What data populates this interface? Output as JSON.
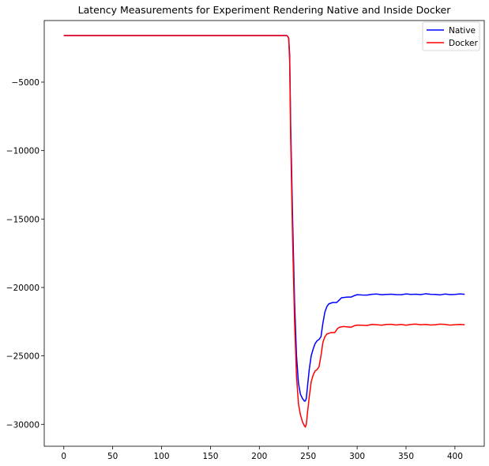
{
  "chart_data": {
    "type": "line",
    "title": "Latency Measurements for Experiment Rendering Native and Inside Docker",
    "xlabel": "",
    "ylabel": "",
    "xlim": [
      -20,
      430
    ],
    "ylim": [
      -31600,
      -500
    ],
    "xticks": [
      0,
      50,
      100,
      150,
      200,
      250,
      300,
      350,
      400
    ],
    "yticks": [
      -5000,
      -10000,
      -15000,
      -20000,
      -25000,
      -30000
    ],
    "xtick_labels": [
      "0",
      "50",
      "100",
      "150",
      "200",
      "250",
      "300",
      "350",
      "400"
    ],
    "ytick_labels": [
      "−5000",
      "−10000",
      "−15000",
      "−20000",
      "−25000",
      "−30000"
    ],
    "grid": false,
    "legend_position": "top-right",
    "series": [
      {
        "name": "Native",
        "color": "#0000ff",
        "points": [
          [
            0,
            -1600
          ],
          [
            100,
            -1600
          ],
          [
            200,
            -1600
          ],
          [
            228,
            -1600
          ],
          [
            229,
            -1650
          ],
          [
            230,
            -1800
          ],
          [
            231,
            -3000
          ],
          [
            232,
            -8000
          ],
          [
            234,
            -15000
          ],
          [
            236,
            -21000
          ],
          [
            238,
            -25000
          ],
          [
            240,
            -27000
          ],
          [
            242,
            -27800
          ],
          [
            244,
            -28100
          ],
          [
            246,
            -28300
          ],
          [
            247,
            -28300
          ],
          [
            248,
            -28100
          ],
          [
            249,
            -27400
          ],
          [
            251,
            -26000
          ],
          [
            253,
            -25000
          ],
          [
            255,
            -24500
          ],
          [
            257,
            -24100
          ],
          [
            259,
            -23900
          ],
          [
            261,
            -23800
          ],
          [
            263,
            -23600
          ],
          [
            265,
            -22600
          ],
          [
            267,
            -21800
          ],
          [
            269,
            -21400
          ],
          [
            271,
            -21200
          ],
          [
            275,
            -21100
          ],
          [
            279,
            -21100
          ],
          [
            282,
            -20900
          ],
          [
            284,
            -20750
          ],
          [
            290,
            -20700
          ],
          [
            294,
            -20700
          ],
          [
            297,
            -20600
          ],
          [
            300,
            -20530
          ],
          [
            305,
            -20550
          ],
          [
            310,
            -20560
          ],
          [
            315,
            -20500
          ],
          [
            320,
            -20480
          ],
          [
            325,
            -20530
          ],
          [
            330,
            -20510
          ],
          [
            335,
            -20490
          ],
          [
            340,
            -20520
          ],
          [
            345,
            -20530
          ],
          [
            350,
            -20470
          ],
          [
            355,
            -20510
          ],
          [
            360,
            -20490
          ],
          [
            365,
            -20520
          ],
          [
            370,
            -20460
          ],
          [
            375,
            -20500
          ],
          [
            380,
            -20510
          ],
          [
            385,
            -20540
          ],
          [
            390,
            -20480
          ],
          [
            395,
            -20520
          ],
          [
            400,
            -20510
          ],
          [
            405,
            -20470
          ],
          [
            410,
            -20500
          ]
        ]
      },
      {
        "name": "Docker",
        "color": "#ff0000",
        "points": [
          [
            0,
            -1600
          ],
          [
            100,
            -1600
          ],
          [
            200,
            -1600
          ],
          [
            228,
            -1600
          ],
          [
            229,
            -1650
          ],
          [
            230,
            -1800
          ],
          [
            231,
            -3500
          ],
          [
            232,
            -9000
          ],
          [
            234,
            -16500
          ],
          [
            236,
            -22500
          ],
          [
            238,
            -26500
          ],
          [
            240,
            -28500
          ],
          [
            242,
            -29300
          ],
          [
            244,
            -29800
          ],
          [
            246,
            -30100
          ],
          [
            247,
            -30200
          ],
          [
            248,
            -30000
          ],
          [
            249,
            -29300
          ],
          [
            251,
            -28000
          ],
          [
            253,
            -26900
          ],
          [
            255,
            -26400
          ],
          [
            257,
            -26100
          ],
          [
            259,
            -26000
          ],
          [
            261,
            -25800
          ],
          [
            263,
            -25000
          ],
          [
            265,
            -24000
          ],
          [
            267,
            -23600
          ],
          [
            269,
            -23400
          ],
          [
            273,
            -23300
          ],
          [
            277,
            -23300
          ],
          [
            280,
            -23000
          ],
          [
            282,
            -22900
          ],
          [
            286,
            -22850
          ],
          [
            290,
            -22880
          ],
          [
            294,
            -22900
          ],
          [
            297,
            -22800
          ],
          [
            300,
            -22750
          ],
          [
            305,
            -22760
          ],
          [
            310,
            -22780
          ],
          [
            315,
            -22700
          ],
          [
            320,
            -22720
          ],
          [
            325,
            -22760
          ],
          [
            330,
            -22700
          ],
          [
            335,
            -22690
          ],
          [
            340,
            -22740
          ],
          [
            345,
            -22700
          ],
          [
            350,
            -22760
          ],
          [
            355,
            -22700
          ],
          [
            360,
            -22680
          ],
          [
            365,
            -22720
          ],
          [
            370,
            -22700
          ],
          [
            375,
            -22740
          ],
          [
            380,
            -22720
          ],
          [
            385,
            -22680
          ],
          [
            390,
            -22700
          ],
          [
            395,
            -22750
          ],
          [
            400,
            -22720
          ],
          [
            405,
            -22700
          ],
          [
            410,
            -22720
          ]
        ]
      }
    ]
  }
}
